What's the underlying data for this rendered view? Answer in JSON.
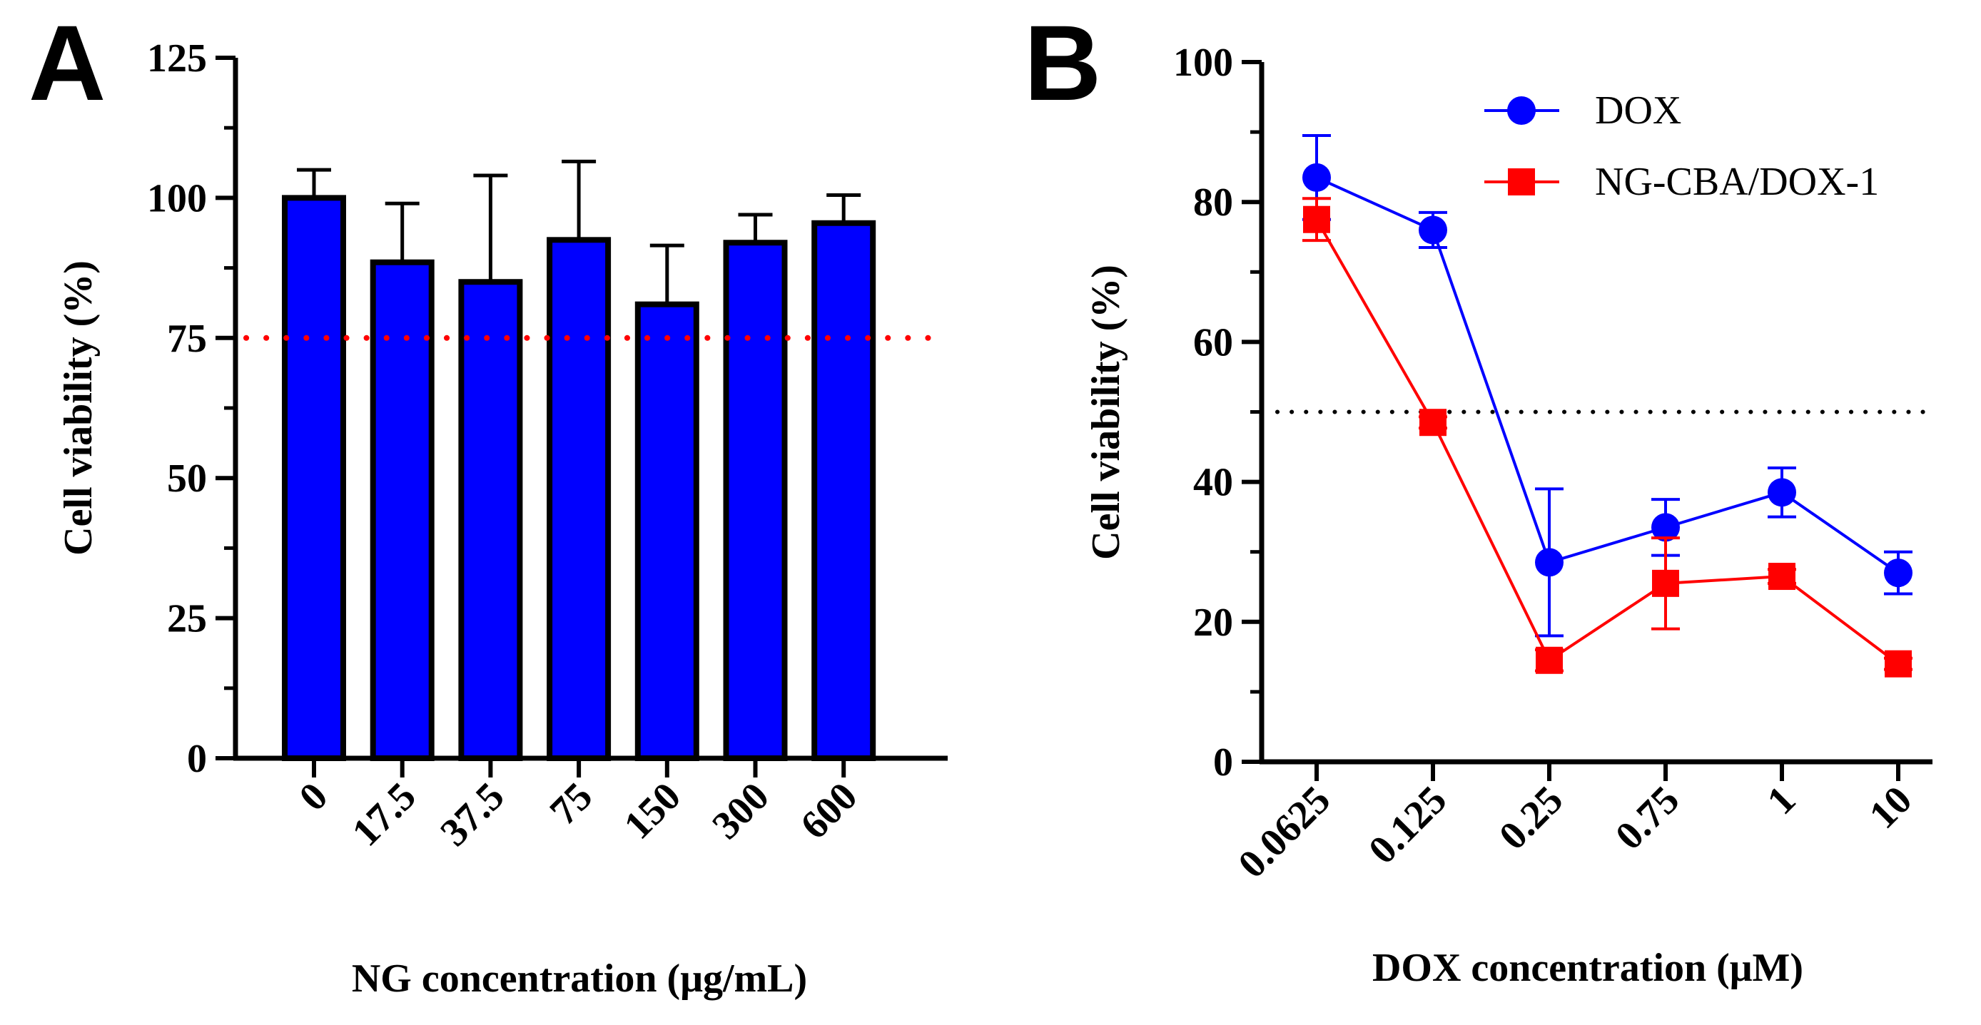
{
  "chart_data": [
    {
      "panel_label": "A",
      "type": "bar",
      "title": "",
      "xlabel": "NG concentration (μg/mL)",
      "ylabel": "Cell viability (%)",
      "ylim": [
        0,
        125
      ],
      "yticks": [
        "0",
        "25",
        "50",
        "75",
        "100",
        "125"
      ],
      "categories": [
        "0",
        "17.5",
        "37.5",
        "75",
        "150",
        "300",
        "600"
      ],
      "values": [
        100,
        88.5,
        85,
        92.5,
        81,
        92,
        95.5
      ],
      "errors": [
        5,
        10.5,
        19,
        14,
        10.5,
        5,
        5
      ],
      "bar_color": "#0000ff",
      "reference_line": {
        "value": 75,
        "color": "#ff0000",
        "style": "dotted"
      },
      "grid": false
    },
    {
      "panel_label": "B",
      "type": "line",
      "title": "",
      "xlabel": "DOX concentration (μM)",
      "ylabel": "Cell viability (%)",
      "ylim": [
        0,
        100
      ],
      "yticks": [
        "0",
        "20",
        "40",
        "60",
        "80",
        "100"
      ],
      "categories": [
        "0.0625",
        "0.125",
        "0.25",
        "0.75",
        "1",
        "10"
      ],
      "series": [
        {
          "name": "DOX",
          "marker": "circle",
          "color": "#0000ff",
          "values": [
            83.5,
            76,
            28.5,
            33.5,
            38.5,
            27
          ],
          "errors": [
            6,
            2.5,
            10.5,
            4,
            3.5,
            3
          ]
        },
        {
          "name": "NG-CBA/DOX-1",
          "marker": "square",
          "color": "#ff0000",
          "values": [
            77.5,
            48.5,
            14.5,
            25.5,
            26.5,
            14
          ],
          "errors": [
            3,
            0.8,
            1.5,
            6.5,
            1,
            0.8
          ]
        }
      ],
      "reference_line": {
        "value": 50,
        "color": "#000000",
        "style": "dotted"
      },
      "legend_position": "top-right",
      "grid": false
    }
  ]
}
